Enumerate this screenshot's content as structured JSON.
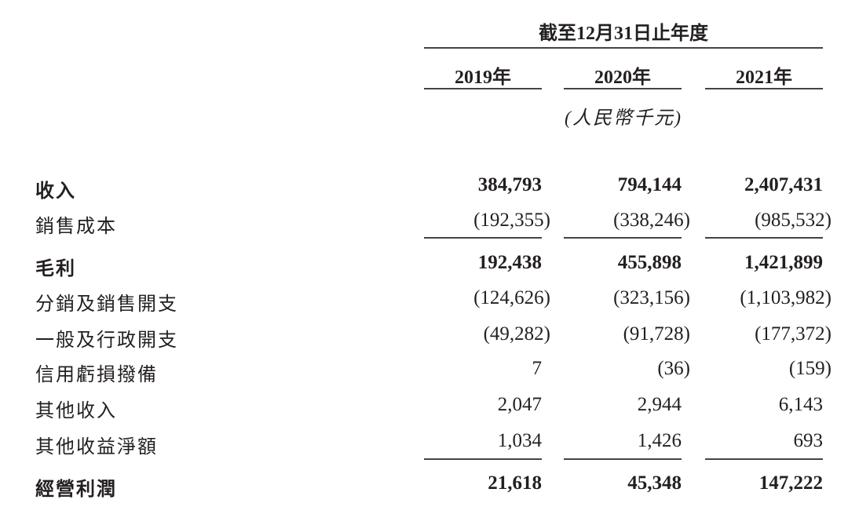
{
  "header": {
    "period": "截至12月31日止年度",
    "years": [
      "2019年",
      "2020年",
      "2021年"
    ],
    "unit": "(人民幣千元)"
  },
  "rows": [
    {
      "label": "收入",
      "bold": true,
      "values": [
        "384,793",
        "794,144",
        "2,407,431"
      ]
    },
    {
      "label": "銷售成本",
      "bold": false,
      "values": [
        "(192,355)",
        "(338,246)",
        "(985,532)"
      ]
    },
    {
      "label": "毛利",
      "bold": true,
      "values": [
        "192,438",
        "455,898",
        "1,421,899"
      ]
    },
    {
      "label": "分銷及銷售開支",
      "bold": false,
      "values": [
        "(124,626)",
        "(323,156)",
        "(1,103,982)"
      ]
    },
    {
      "label": "一般及行政開支",
      "bold": false,
      "values": [
        "(49,282)",
        "(91,728)",
        "(177,372)"
      ]
    },
    {
      "label": "信用虧損撥備",
      "bold": false,
      "values": [
        "7",
        "(36)",
        "(159)"
      ]
    },
    {
      "label": "其他收入",
      "bold": false,
      "values": [
        "2,047",
        "2,944",
        "6,143"
      ]
    },
    {
      "label": "其他收益淨額",
      "bold": false,
      "values": [
        "1,034",
        "1,426",
        "693"
      ]
    },
    {
      "label": "經營利潤",
      "bold": true,
      "values": [
        "21,618",
        "45,348",
        "147,222"
      ]
    }
  ]
}
